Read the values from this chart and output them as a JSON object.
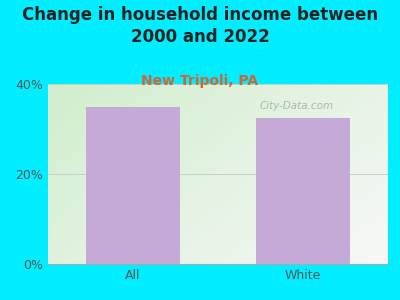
{
  "categories": [
    "All",
    "White"
  ],
  "values": [
    35.0,
    32.5
  ],
  "bar_color": "#c5aad8",
  "title": "Change in household income between\n2000 and 2022",
  "subtitle": "New Tripoli, PA",
  "subtitle_color": "#cc6633",
  "title_color": "#222222",
  "background_color": "#00eeff",
  "ylim": [
    0,
    40
  ],
  "yticks": [
    0,
    20,
    40
  ],
  "ytick_labels": [
    "0%",
    "20%",
    "40%"
  ],
  "grid_color": "#cccccc",
  "watermark": "City-Data.com",
  "title_fontsize": 12,
  "subtitle_fontsize": 10,
  "tick_fontsize": 9,
  "bar_width": 0.55
}
